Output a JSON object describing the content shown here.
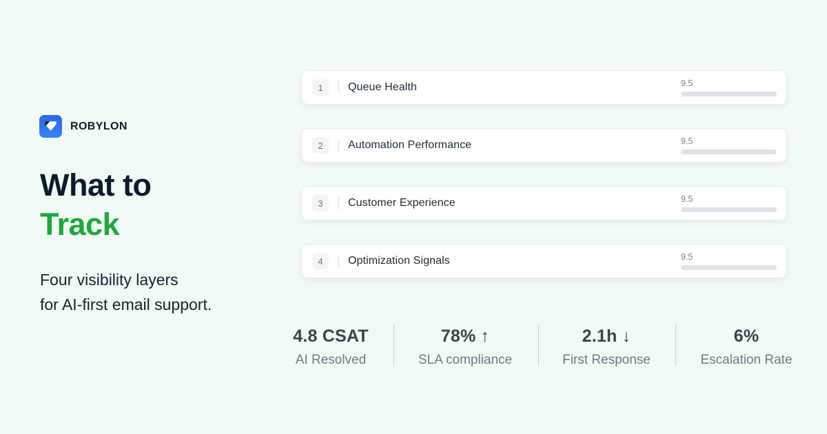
{
  "brand": {
    "name": "ROBYLON",
    "logo_blue_top": "#2a68dd",
    "logo_blue_bottom": "#3b82f6",
    "logo_notch_navy": "#0f1d2b"
  },
  "hero": {
    "title_line1": "What to",
    "title_line2": "Track",
    "accent_color": "#1ea73c",
    "subtitle_line1": "Four visibility layers",
    "subtitle_line2": "for AI-first email support."
  },
  "layers": {
    "score_max": 10,
    "items": [
      {
        "number": "1",
        "title": "Queue Health",
        "score": "9.5",
        "color": "#1c82da"
      },
      {
        "number": "2",
        "title": "Automation Performance",
        "score": "9.5",
        "color": "#28a24c"
      },
      {
        "number": "3",
        "title": "Customer Experience",
        "score": "9.5",
        "color": "#f9780f"
      },
      {
        "number": "4",
        "title": "Optimization Signals",
        "score": "9.5",
        "color": "#9b7ef2"
      }
    ]
  },
  "stats": {
    "items": [
      {
        "value": "4.8 CSAT",
        "label": "AI Resolved"
      },
      {
        "value": "78% ↑",
        "label": "SLA compliance"
      },
      {
        "value": "2.1h ↓",
        "label": "First Response"
      },
      {
        "value": "6%",
        "label": "Escalation Rate"
      }
    ]
  }
}
